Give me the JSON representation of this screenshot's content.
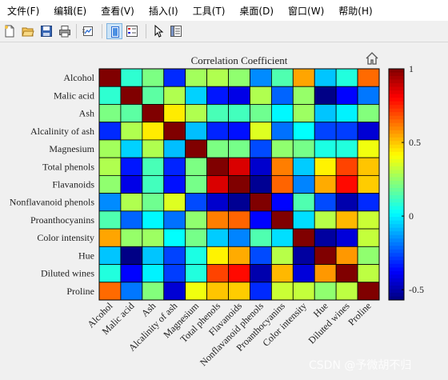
{
  "menu": [
    "文件(F)",
    "编辑(E)",
    "查看(V)",
    "插入(I)",
    "工具(T)",
    "桌面(D)",
    "窗口(W)",
    "帮助(H)"
  ],
  "toolbar": {
    "buttons": [
      {
        "name": "new-figure-button",
        "icon": "new-file-icon"
      },
      {
        "name": "open-file-button",
        "icon": "folder-open-icon"
      },
      {
        "name": "save-button",
        "icon": "save-icon"
      },
      {
        "name": "print-button",
        "icon": "print-icon"
      },
      {
        "name": "link-figure-button",
        "icon": "link-plot-icon"
      },
      {
        "name": "hide-plot-tools-button",
        "icon": "plot-tools-hide-icon"
      },
      {
        "name": "insert-legend-button",
        "icon": "legend-icon"
      },
      {
        "name": "edit-plot-button",
        "icon": "cursor-arrow-icon"
      },
      {
        "name": "property-inspector-button",
        "icon": "property-inspector-icon"
      }
    ]
  },
  "axes_toolbar": {
    "icon": "home-icon"
  },
  "watermark": "CSDN @予微胡不归",
  "chart_data": {
    "type": "heatmap",
    "title": "Correlation Coefficient",
    "labels": [
      "Alcohol",
      "Malic acid",
      "Ash",
      "Alcalinity of ash",
      "Magnesium",
      "Total phenols",
      "Flavanoids",
      "Nonflavanoid phenols",
      "Proanthocyanins",
      "Color intensity",
      "Hue",
      "Diluted wines",
      "Proline"
    ],
    "values": [
      [
        1.0,
        0.09,
        0.21,
        -0.31,
        0.27,
        0.29,
        0.24,
        -0.16,
        0.14,
        0.55,
        -0.07,
        0.07,
        0.64
      ],
      [
        0.09,
        1.0,
        0.16,
        0.29,
        -0.05,
        -0.34,
        -0.41,
        0.29,
        -0.22,
        0.25,
        -0.56,
        -0.37,
        -0.19
      ],
      [
        0.21,
        0.16,
        1.0,
        0.44,
        0.29,
        0.13,
        0.12,
        0.19,
        0.01,
        0.26,
        -0.07,
        0.0,
        0.22
      ],
      [
        -0.31,
        0.29,
        0.44,
        1.0,
        -0.08,
        -0.32,
        -0.35,
        0.36,
        -0.2,
        0.02,
        -0.27,
        -0.28,
        -0.44
      ],
      [
        0.27,
        -0.05,
        0.29,
        -0.08,
        1.0,
        0.21,
        0.2,
        -0.26,
        0.24,
        0.2,
        0.06,
        0.07,
        0.39
      ],
      [
        0.29,
        -0.34,
        0.13,
        -0.32,
        0.21,
        1.0,
        0.86,
        -0.45,
        0.61,
        -0.06,
        0.43,
        0.7,
        0.5
      ],
      [
        0.24,
        -0.41,
        0.12,
        -0.35,
        0.2,
        0.86,
        1.0,
        -0.54,
        0.65,
        -0.17,
        0.54,
        0.79,
        0.49
      ],
      [
        -0.16,
        0.29,
        0.19,
        0.36,
        -0.26,
        -0.45,
        -0.54,
        1.0,
        -0.37,
        0.14,
        -0.26,
        -0.5,
        -0.31
      ],
      [
        0.14,
        -0.22,
        0.01,
        -0.2,
        0.24,
        0.61,
        0.65,
        -0.37,
        1.0,
        -0.03,
        0.3,
        0.52,
        0.33
      ],
      [
        0.55,
        0.25,
        0.26,
        0.02,
        0.2,
        -0.06,
        -0.17,
        0.14,
        -0.03,
        1.0,
        -0.52,
        -0.43,
        0.32
      ],
      [
        -0.07,
        -0.56,
        -0.07,
        -0.27,
        0.06,
        0.43,
        0.54,
        -0.26,
        0.3,
        -0.52,
        1.0,
        0.57,
        0.24
      ],
      [
        0.07,
        -0.37,
        0.0,
        -0.28,
        0.07,
        0.7,
        0.79,
        -0.5,
        0.52,
        -0.43,
        0.57,
        1.0,
        0.31
      ],
      [
        0.64,
        -0.19,
        0.22,
        -0.44,
        0.39,
        0.5,
        0.49,
        -0.31,
        0.33,
        0.32,
        0.24,
        0.31,
        1.0
      ]
    ],
    "colormap": "jet",
    "clim": [
      -0.57,
      1
    ],
    "colorbar": {
      "ticks": [
        1,
        0.5,
        0,
        -0.5
      ],
      "tick_labels": [
        "1",
        "0.5",
        "0",
        "-0.5"
      ]
    },
    "grid": false,
    "legend": "none"
  }
}
